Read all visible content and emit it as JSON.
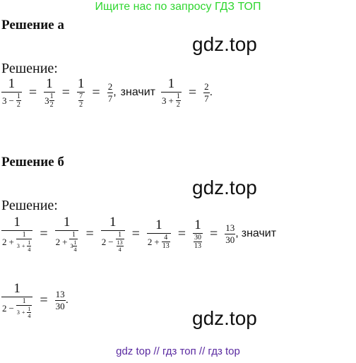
{
  "banner": "Ищите нас по запросу ГДЗ ТОП",
  "watermark": "gdz.top",
  "footer": "gdz top  //  гдз топ  //  гдз top",
  "section_a": {
    "title": "Решение а",
    "label": "Решение:",
    "one": "1",
    "two": "2",
    "three": "3",
    "seven": "7",
    "minus": "−",
    "plus": "+",
    "eq": "=",
    "comma": ",",
    "period": ".",
    "znachit": "значит"
  },
  "section_b": {
    "title": "Решение б",
    "label": "Решение:",
    "one": "1",
    "two": "2",
    "three": "3",
    "four": "4",
    "thirteen": "13",
    "thirty": "30",
    "minus": "−",
    "plus": "+",
    "eq": "=",
    "comma": ",",
    "period": ".",
    "znachit": "значит"
  }
}
